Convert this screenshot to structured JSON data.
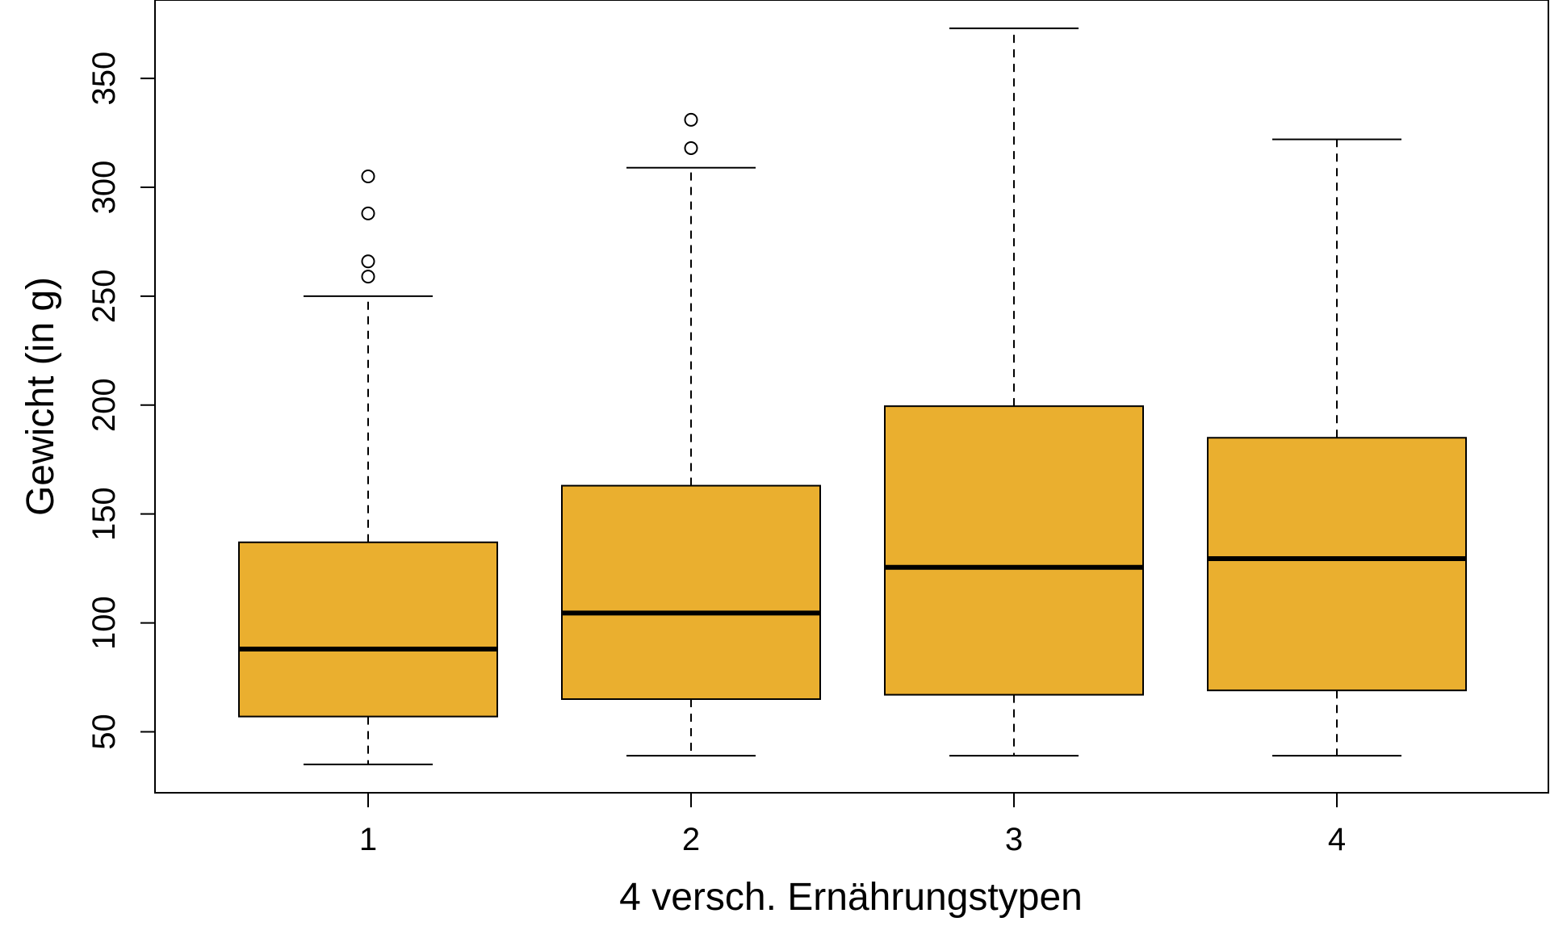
{
  "chart_data": {
    "type": "box",
    "xlabel": "4 versch. Ernährungstypen",
    "ylabel": "Gewicht (in g)",
    "ylim": [
      22,
      386
    ],
    "yticks": [
      50,
      100,
      150,
      200,
      250,
      300,
      350
    ],
    "categories": [
      "1",
      "2",
      "3",
      "4"
    ],
    "boxes": [
      {
        "category": "1",
        "whisker_low": 35,
        "q1": 57,
        "median": 88,
        "q3": 137,
        "whisker_high": 250,
        "outliers": [
          259,
          266,
          288,
          305
        ]
      },
      {
        "category": "2",
        "whisker_low": 39,
        "q1": 65,
        "median": 104.5,
        "q3": 163,
        "whisker_high": 309,
        "outliers": [
          318,
          331
        ]
      },
      {
        "category": "3",
        "whisker_low": 39,
        "q1": 67,
        "median": 125.5,
        "q3": 199.5,
        "whisker_high": 373,
        "outliers": []
      },
      {
        "category": "4",
        "whisker_low": 39,
        "q1": 69,
        "median": 129.5,
        "q3": 185,
        "whisker_high": 322,
        "outliers": []
      }
    ],
    "colors": {
      "box_fill": "#EAAF2F",
      "stroke": "#000000"
    }
  }
}
